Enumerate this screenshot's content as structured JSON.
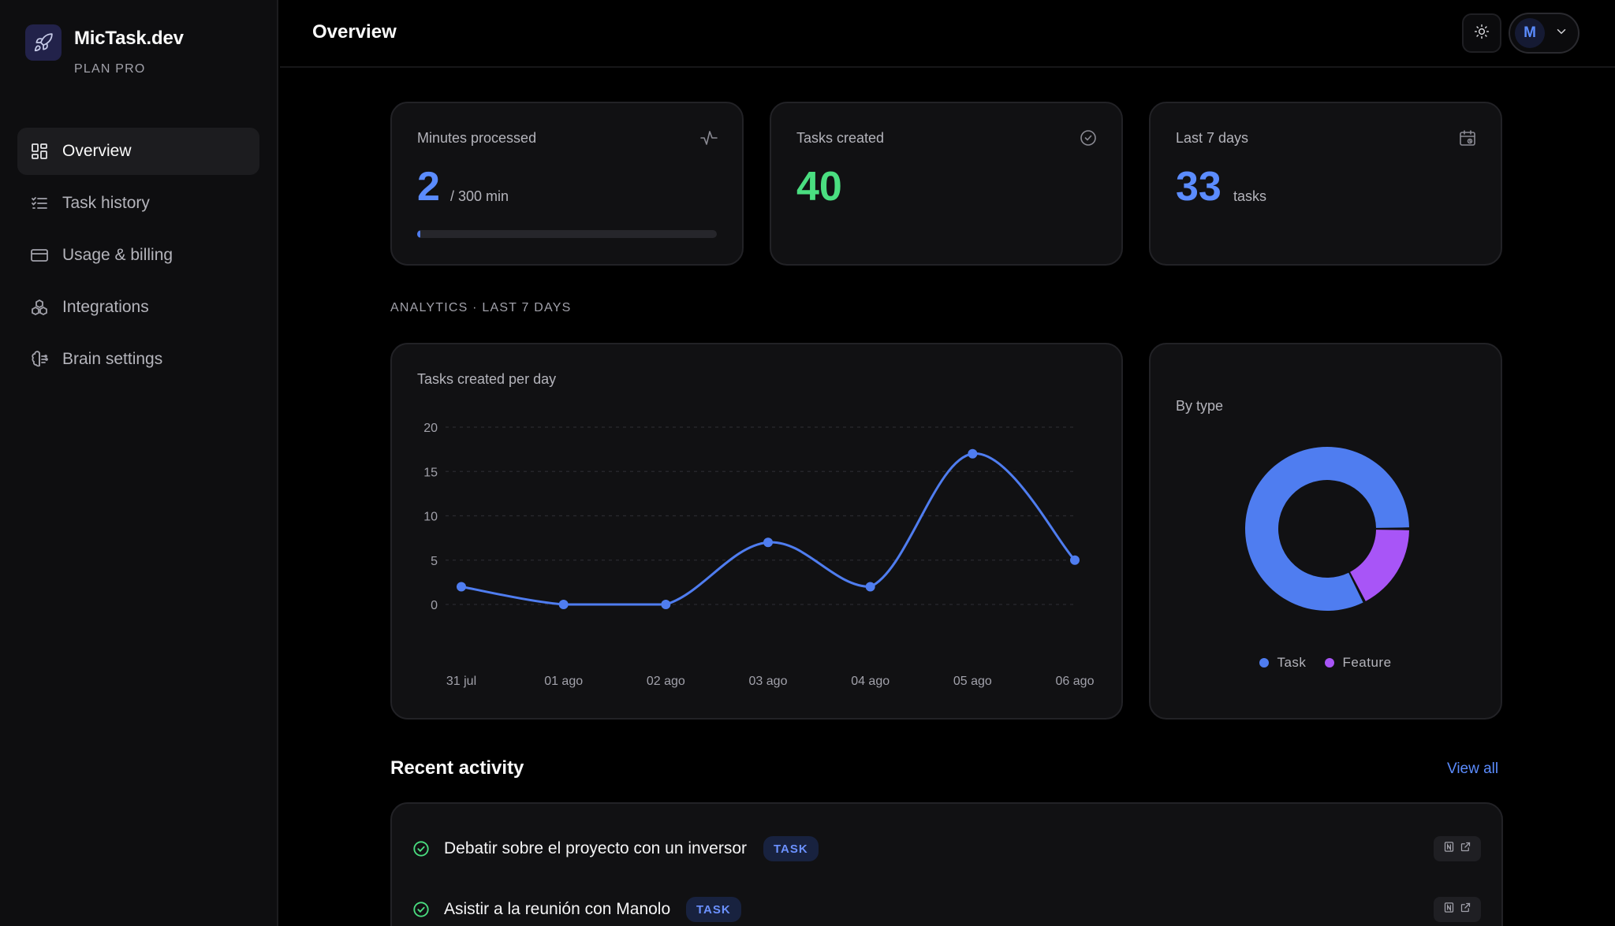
{
  "brand": {
    "name": "MicTask.dev",
    "plan": "PLAN PRO"
  },
  "sidebar": {
    "items": [
      {
        "label": "Overview",
        "icon": "dashboard-grid-icon",
        "active": true
      },
      {
        "label": "Task history",
        "icon": "checklist-icon",
        "active": false
      },
      {
        "label": "Usage & billing",
        "icon": "credit-card-icon",
        "active": false
      },
      {
        "label": "Integrations",
        "icon": "integrations-icon",
        "active": false
      },
      {
        "label": "Brain settings",
        "icon": "brain-icon",
        "active": false
      }
    ]
  },
  "header": {
    "title": "Overview",
    "avatar_initial": "M"
  },
  "stats": {
    "minutes": {
      "label": "Minutes processed",
      "value": "2",
      "unit": "/ 300 min",
      "progress": 0.0067,
      "icon": "activity-icon"
    },
    "tasks": {
      "label": "Tasks created",
      "value": "40",
      "icon": "check-circle-icon"
    },
    "last7": {
      "label": "Last 7 days",
      "value": "33",
      "unit": "tasks",
      "icon": "calendar-icon"
    }
  },
  "analytics_label": "ANALYTICS · LAST 7 DAYS",
  "chart_data": [
    {
      "type": "line",
      "title": "Tasks created per day",
      "xlabel": "",
      "ylabel": "",
      "x": [
        "31 jul",
        "01 ago",
        "02 ago",
        "03 ago",
        "04 ago",
        "05 ago",
        "06 ago"
      ],
      "series": [
        {
          "values": [
            2,
            0,
            0,
            7,
            2,
            17,
            5
          ]
        }
      ],
      "yticks": [
        0,
        5,
        10,
        15,
        20
      ],
      "ylim": [
        0,
        20
      ],
      "grid": true,
      "color": "#4f7df0"
    },
    {
      "type": "pie",
      "title": "By type",
      "labels": [
        "Task",
        "Feature"
      ],
      "values": [
        33,
        7
      ],
      "colors": [
        "#4f7df0",
        "#a855f7"
      ],
      "legend": "bottom"
    }
  ],
  "activity": {
    "heading": "Recent activity",
    "view_all": "View all",
    "rows": [
      {
        "title": "Debatir sobre el proyecto con un inversor",
        "badge": "TASK"
      },
      {
        "title": "Asistir a la reunión con Manolo",
        "badge": "TASK"
      }
    ]
  },
  "colors": {
    "accent": "#4f7df0",
    "success": "#4ade80",
    "feature": "#a855f7"
  }
}
